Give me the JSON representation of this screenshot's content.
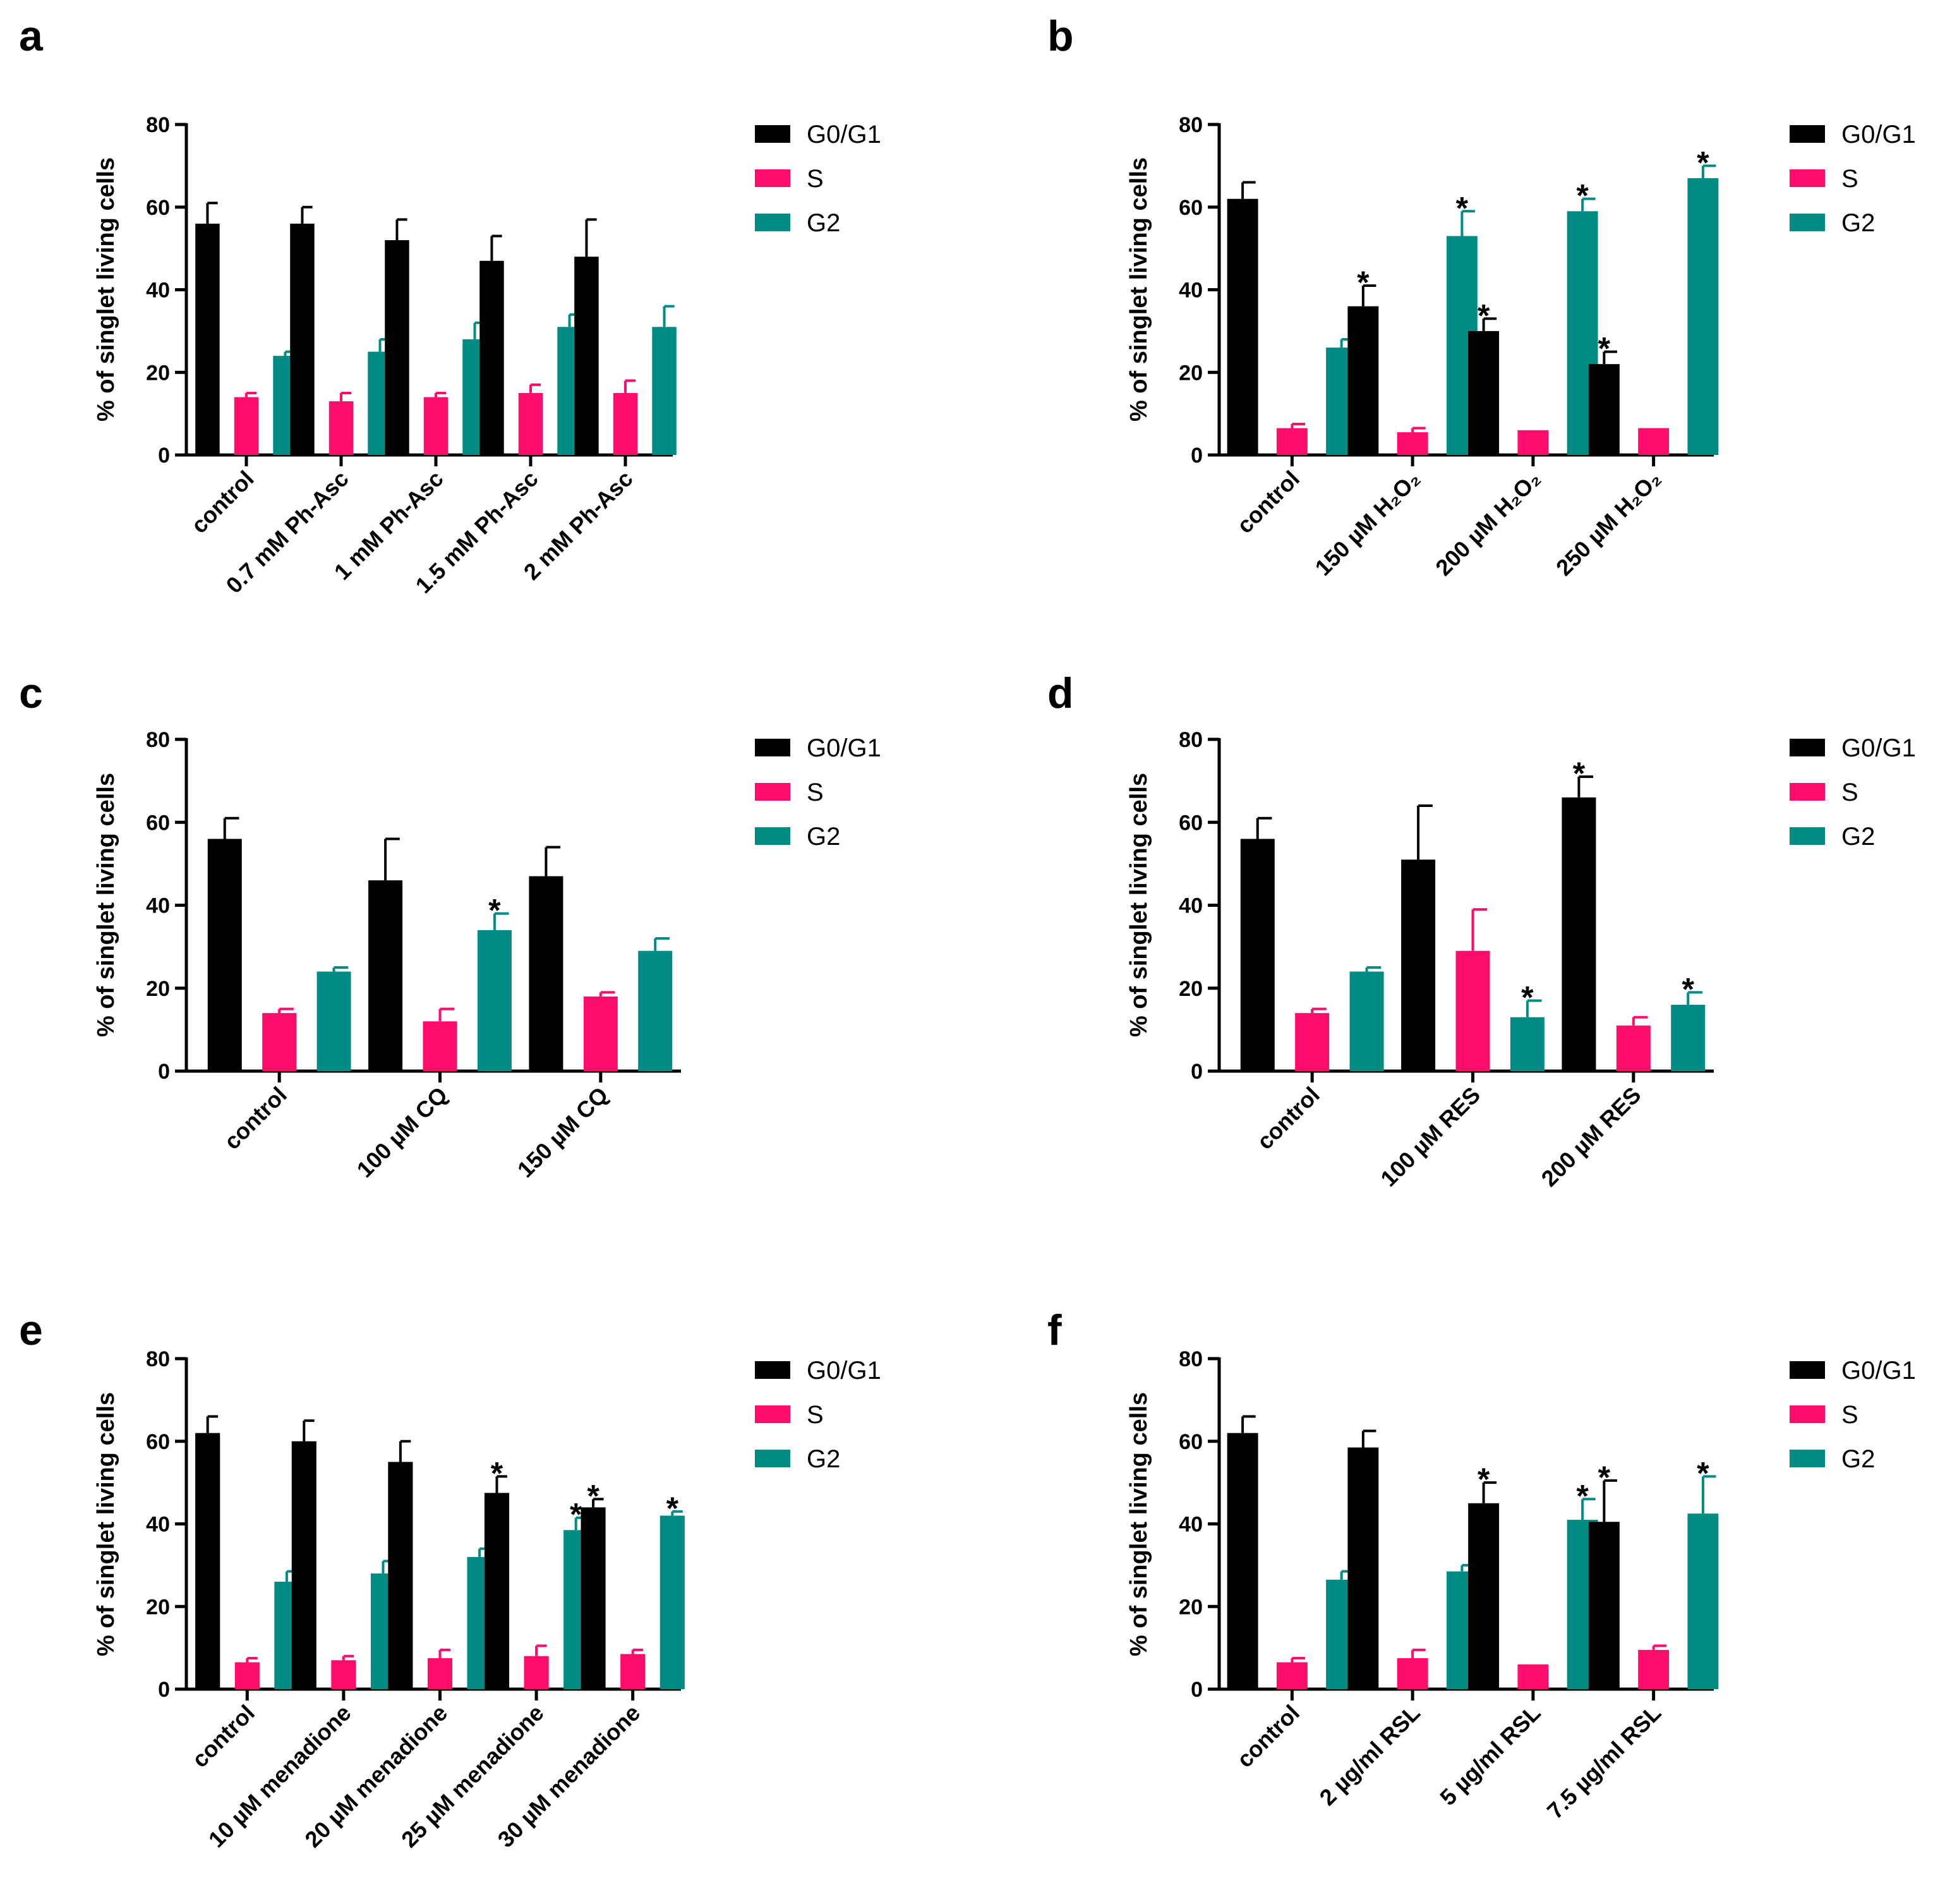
{
  "colors": {
    "g0g1": "#000000",
    "s": "#ff0d6d",
    "g2": "#008b85"
  },
  "chart_data": [
    {
      "panel": "a",
      "type": "bar",
      "ylabel": "% of singlet living cells",
      "ylim": [
        0,
        80
      ],
      "yticks": [
        "0",
        "20",
        "40",
        "60",
        "80"
      ],
      "categories": [
        "control",
        "0.7 mM Ph-Asc",
        "1 mM Ph-Asc",
        "1.5 mM Ph-Asc",
        "2 mM Ph-Asc"
      ],
      "series": [
        {
          "name": "G0/G1",
          "values": [
            56,
            56,
            52,
            47,
            48
          ],
          "errors": [
            5,
            4,
            5,
            6,
            9
          ],
          "stars": [
            false,
            false,
            false,
            false,
            false
          ]
        },
        {
          "name": "S",
          "values": [
            14,
            13,
            14,
            15,
            15
          ],
          "errors": [
            1,
            2,
            1,
            2,
            3
          ],
          "stars": [
            false,
            false,
            false,
            false,
            false
          ]
        },
        {
          "name": "G2",
          "values": [
            24,
            25,
            28,
            31,
            31
          ],
          "errors": [
            1,
            3,
            4,
            3,
            5
          ],
          "stars": [
            false,
            false,
            false,
            false,
            false
          ]
        }
      ],
      "legend": "right",
      "star_symbol": "*"
    },
    {
      "panel": "b",
      "type": "bar",
      "ylabel": "% of singlet living cells",
      "ylim": [
        0,
        80
      ],
      "yticks": [
        "0",
        "20",
        "40",
        "60",
        "80"
      ],
      "categories": [
        "control",
        "150 µM H₂O₂",
        "200 µM H₂O₂",
        "250 µM H₂O₂"
      ],
      "series": [
        {
          "name": "G0/G1",
          "values": [
            62,
            36,
            30,
            22
          ],
          "errors": [
            4,
            5,
            3,
            3
          ],
          "stars": [
            false,
            true,
            true,
            true
          ]
        },
        {
          "name": "S",
          "values": [
            6.5,
            5.5,
            6,
            6.5
          ],
          "errors": [
            1,
            1,
            0,
            0
          ],
          "stars": [
            false,
            false,
            false,
            false
          ]
        },
        {
          "name": "G2",
          "values": [
            26,
            53,
            59,
            67
          ],
          "errors": [
            2,
            6,
            3,
            3
          ],
          "stars": [
            false,
            true,
            true,
            true
          ]
        }
      ],
      "legend": "right",
      "star_symbol": "*"
    },
    {
      "panel": "c",
      "type": "bar",
      "ylabel": "% of singlet living cells",
      "ylim": [
        0,
        80
      ],
      "yticks": [
        "0",
        "20",
        "40",
        "60",
        "80"
      ],
      "categories": [
        "control",
        "100 µM CQ",
        "150 µM CQ"
      ],
      "series": [
        {
          "name": "G0/G1",
          "values": [
            56,
            46,
            47
          ],
          "errors": [
            5,
            10,
            7
          ],
          "stars": [
            false,
            false,
            false
          ]
        },
        {
          "name": "S",
          "values": [
            14,
            12,
            18
          ],
          "errors": [
            1,
            3,
            1
          ],
          "stars": [
            false,
            false,
            false
          ]
        },
        {
          "name": "G2",
          "values": [
            24,
            34,
            29
          ],
          "errors": [
            1,
            4,
            3
          ],
          "stars": [
            false,
            true,
            false
          ]
        }
      ],
      "legend": "right",
      "star_symbol": "*"
    },
    {
      "panel": "d",
      "type": "bar",
      "ylabel": "% of singlet living cells",
      "ylim": [
        0,
        80
      ],
      "yticks": [
        "0",
        "20",
        "40",
        "60",
        "80"
      ],
      "categories": [
        "control",
        "100 µM RES",
        "200 µM RES"
      ],
      "series": [
        {
          "name": "G0/G1",
          "values": [
            56,
            51,
            66
          ],
          "errors": [
            5,
            13,
            5
          ],
          "stars": [
            false,
            false,
            true
          ]
        },
        {
          "name": "S",
          "values": [
            14,
            29,
            11
          ],
          "errors": [
            1,
            10,
            2
          ],
          "stars": [
            false,
            false,
            false
          ]
        },
        {
          "name": "G2",
          "values": [
            24,
            13,
            16
          ],
          "errors": [
            1,
            4,
            3
          ],
          "stars": [
            false,
            true,
            true
          ]
        }
      ],
      "legend": "right",
      "star_symbol": "*"
    },
    {
      "panel": "e",
      "type": "bar",
      "ylabel": "% of singlet living cells",
      "ylim": [
        0,
        80
      ],
      "yticks": [
        "0",
        "20",
        "40",
        "60",
        "80"
      ],
      "categories": [
        "control",
        "10 µM menadione",
        "20 µM menadione",
        "25 µM menadione",
        "30 µM menadione"
      ],
      "series": [
        {
          "name": "G0/G1",
          "values": [
            62,
            60,
            55,
            47.5,
            44
          ],
          "errors": [
            4,
            5,
            5,
            4,
            2
          ],
          "stars": [
            false,
            false,
            false,
            true,
            true
          ]
        },
        {
          "name": "S",
          "values": [
            6.5,
            7,
            7.5,
            8,
            8.5
          ],
          "errors": [
            1,
            1,
            2,
            2.5,
            1
          ],
          "stars": [
            false,
            false,
            false,
            false,
            false
          ]
        },
        {
          "name": "G2",
          "values": [
            26,
            28,
            32,
            38.5,
            42
          ],
          "errors": [
            2.5,
            3,
            2,
            3,
            1
          ],
          "stars": [
            false,
            false,
            false,
            true,
            true
          ]
        }
      ],
      "legend": "right",
      "star_symbol": "*"
    },
    {
      "panel": "f",
      "type": "bar",
      "ylabel": "% of singlet living cells",
      "ylim": [
        0,
        80
      ],
      "yticks": [
        "0",
        "20",
        "40",
        "60",
        "80"
      ],
      "categories": [
        "control",
        "2 µg/ml RSL",
        "5 µg/ml RSL",
        "7.5 µg/ml RSL"
      ],
      "series": [
        {
          "name": "G0/G1",
          "values": [
            62,
            58.5,
            45,
            40.5
          ],
          "errors": [
            4,
            4,
            5,
            10
          ],
          "stars": [
            false,
            false,
            true,
            true
          ]
        },
        {
          "name": "S",
          "values": [
            6.5,
            7.5,
            6,
            9.5
          ],
          "errors": [
            1,
            2,
            0,
            1
          ],
          "stars": [
            false,
            false,
            false,
            false
          ]
        },
        {
          "name": "G2",
          "values": [
            26.5,
            28.5,
            41,
            42.5
          ],
          "errors": [
            2,
            1.5,
            5,
            9
          ],
          "stars": [
            false,
            false,
            true,
            true
          ]
        }
      ],
      "legend": "right",
      "star_symbol": "*"
    }
  ]
}
